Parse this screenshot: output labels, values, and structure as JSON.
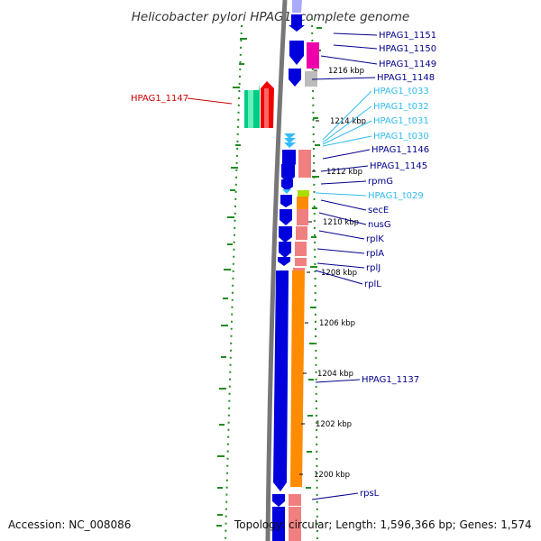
{
  "title": "Helicobacter pylori HPAG1, complete genome",
  "footer": {
    "accession": "Accession: NC_008086",
    "summary": "Topology: circular; Length: 1,596,366 bp; Genes: 1,574"
  },
  "colors": {
    "backbone": "#777777",
    "gc_dots": "#228B22",
    "cds": "#0000dd",
    "trna": "#33bbff",
    "gene_outer": "#f08080",
    "gene_orange": "#ff8c00",
    "label_dark": "#00008b",
    "label_light": "#33bbee",
    "label_red": "#cc0000"
  },
  "ticks": [
    "1216 kbp",
    "1214 kbp",
    "1212 kbp",
    "1210 kbp",
    "1208 kbp",
    "1206 kbp",
    "1204 kbp",
    "1202 kbp",
    "1200 kbp"
  ],
  "labels": [
    {
      "text": "HPAG1_1151",
      "type": "cds"
    },
    {
      "text": "HPAG1_1150",
      "type": "cds"
    },
    {
      "text": "HPAG1_1149",
      "type": "cds"
    },
    {
      "text": "HPAG1_1148",
      "type": "cds"
    },
    {
      "text": "HPAG1_t033",
      "type": "trna"
    },
    {
      "text": "HPAG1_t032",
      "type": "trna"
    },
    {
      "text": "HPAG1_t031",
      "type": "trna"
    },
    {
      "text": "HPAG1_t030",
      "type": "trna"
    },
    {
      "text": "HPAG1_1146",
      "type": "cds"
    },
    {
      "text": "HPAG1_1145",
      "type": "cds"
    },
    {
      "text": "rpmG",
      "type": "cds"
    },
    {
      "text": "HPAG1_t029",
      "type": "trna"
    },
    {
      "text": "secE",
      "type": "cds"
    },
    {
      "text": "nusG",
      "type": "cds"
    },
    {
      "text": "rplK",
      "type": "cds"
    },
    {
      "text": "rplA",
      "type": "cds"
    },
    {
      "text": "rplJ",
      "type": "cds"
    },
    {
      "text": "rplL",
      "type": "cds"
    },
    {
      "text": "HPAG1_1137",
      "type": "cds"
    },
    {
      "text": "rpsL",
      "type": "cds"
    }
  ],
  "left_label": {
    "text": "HPAG1_1147",
    "type": "highlight"
  }
}
